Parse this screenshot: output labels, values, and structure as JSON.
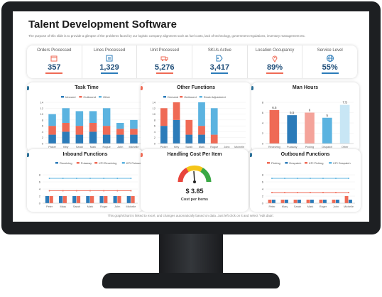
{
  "header": {
    "title": "Talent Development Software",
    "subtitle": "The purpose of this slide is to provide a glimpse of the problems faced by our logistic company alignment such as fuel costs, lack of technology, government regulations, inventory management etc."
  },
  "colors": {
    "blue": "#2b7bb9",
    "light_blue": "#5bb3e0",
    "salmon": "#ef6a55",
    "pink": "#f4a39a",
    "gray": "#c8c8c8"
  },
  "kpis": [
    {
      "label": "Orders Processed",
      "value": "357",
      "icon": "box-icon",
      "accent": "#ef6a55"
    },
    {
      "label": "Lines Processed",
      "value": "1,329",
      "icon": "list-icon",
      "accent": "#2b7bb9"
    },
    {
      "label": "Unit Processed",
      "value": "5,276",
      "icon": "truck-icon",
      "accent": "#ef6a55"
    },
    {
      "label": "SKUs Active",
      "value": "3,417",
      "icon": "tag-icon",
      "accent": "#2b7bb9"
    },
    {
      "label": "Location Occupancy",
      "value": "89%",
      "icon": "location-icon",
      "accent": "#ef6a55"
    },
    {
      "label": "Service Level",
      "value": "55%",
      "icon": "globe-icon",
      "accent": "#2b7bb9"
    }
  ],
  "panels": {
    "task_time": "Task Time",
    "other_functions": "Other Functions",
    "man_hours": "Man Hours",
    "inbound_functions": "Inbound Functions",
    "handling_cost": "Handling Cost Per Item",
    "outbound_functions": "Outbound Functions"
  },
  "handling_cost": {
    "value": "$ 3.85",
    "label": "Cost per Items"
  },
  "footer": "This graph/chart is linked to excel, and changes automatically based on data. Just left click on it and select \"edit data\".",
  "chart_data": [
    {
      "type": "bar",
      "title": "Task Time",
      "stacked": true,
      "categories": [
        "Picker",
        "Kitty",
        "Sarah",
        "Mark",
        "Rogue",
        "John",
        "Michelle"
      ],
      "series": [
        {
          "name": "Inbound",
          "values": [
            3,
            4,
            3,
            4,
            3,
            3,
            3
          ],
          "color": "#2b7bb9"
        },
        {
          "name": "Outbound",
          "values": [
            3,
            3,
            3,
            3,
            3,
            2,
            2
          ],
          "color": "#ef6a55"
        },
        {
          "name": "Other",
          "values": [
            4,
            5,
            5,
            4,
            6,
            2,
            3
          ],
          "color": "#5bb3e0"
        }
      ]
    },
    {
      "type": "bar",
      "title": "Other Functions",
      "stacked": true,
      "categories": [
        "Picker",
        "Kitty",
        "Sarah",
        "Mark",
        "Rogue",
        "John",
        "Michelle"
      ],
      "series": [
        {
          "name": "Demand",
          "values": [
            6,
            8,
            3,
            3,
            0,
            0,
            0
          ],
          "color": "#2b7bb9"
        },
        {
          "name": "Outbound",
          "values": [
            6,
            6,
            5,
            3,
            3,
            0,
            0
          ],
          "color": "#ef6a55"
        },
        {
          "name": "Stock Adjustment",
          "values": [
            0,
            0,
            0,
            8,
            9,
            0,
            0
          ],
          "color": "#5bb3e0"
        }
      ]
    },
    {
      "type": "bar",
      "title": "Man Hours",
      "categories": [
        "Receiving",
        "Putaway",
        "Picking",
        "Dispatch",
        "Other"
      ],
      "values": [
        6.5,
        5.5,
        6,
        5,
        7.5
      ],
      "colors": [
        "#ef6a55",
        "#2b7bb9",
        "#f4a39a",
        "#5bb3e0",
        "#c8e6f5"
      ],
      "data_labels": [
        "6.5",
        "5.5",
        "6",
        "5",
        "7.5"
      ]
    },
    {
      "type": "bar",
      "title": "Inbound Functions",
      "categories": [
        "Peter",
        "Mary",
        "Sarah",
        "Mark",
        "Roger",
        "John",
        "Michelle"
      ],
      "series": [
        {
          "name": "Receiving",
          "values": [
            2,
            2,
            2,
            2,
            2,
            2,
            2
          ],
          "color": "#2b7bb9"
        },
        {
          "name": "Putaway",
          "values": [
            2,
            2,
            2,
            2,
            2,
            2,
            2
          ],
          "color": "#ef6a55"
        }
      ],
      "lines": [
        {
          "name": "KPI Receiving",
          "value": 3.5,
          "color": "#ef6a55"
        },
        {
          "name": "KPI Putaway",
          "value": 7,
          "color": "#5bb3e0"
        }
      ]
    },
    {
      "type": "bar",
      "title": "Outbound Functions",
      "categories": [
        "Peter",
        "Mary",
        "Sarah",
        "Mark",
        "Roger",
        "John",
        "Michelle"
      ],
      "series": [
        {
          "name": "Picking",
          "values": [
            1,
            1,
            1,
            1,
            1,
            1,
            2
          ],
          "color": "#ef6a55"
        },
        {
          "name": "Despatch",
          "values": [
            1,
            1,
            1,
            1,
            1,
            1,
            1
          ],
          "color": "#2b7bb9"
        }
      ],
      "lines": [
        {
          "name": "KPI Picking",
          "value": 3,
          "color": "#ef6a55"
        },
        {
          "name": "KPI Despatch",
          "value": 7,
          "color": "#5bb3e0"
        }
      ]
    }
  ]
}
